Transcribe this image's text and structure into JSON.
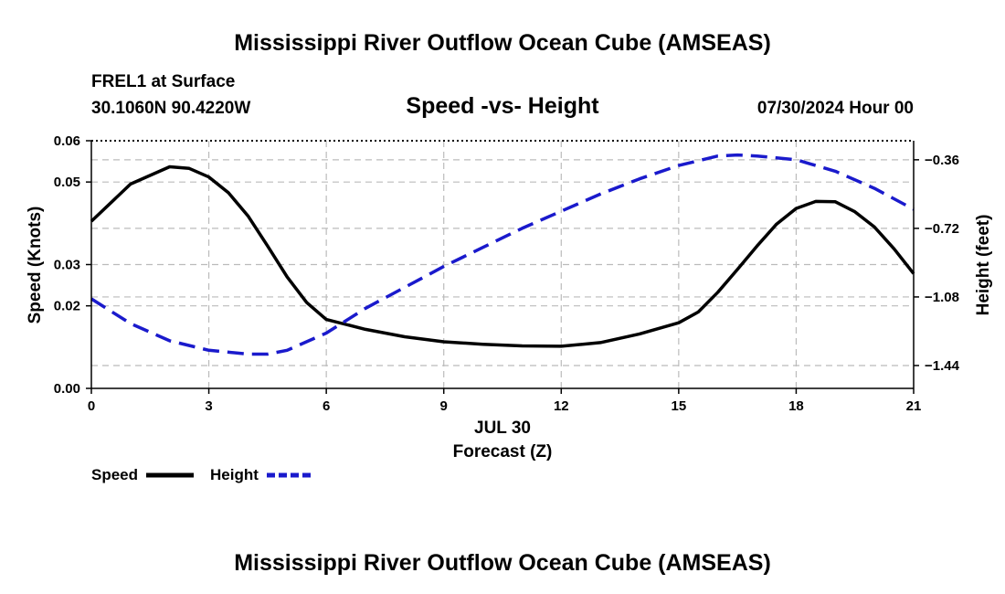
{
  "page": {
    "title": "Mississippi River Outflow Ocean Cube (AMSEAS)",
    "footer_title": "Mississippi River Outflow Ocean Cube (AMSEAS)",
    "station": "FREL1 at Surface",
    "location": "30.1060N  90.4220W",
    "date": "07/30/2024 Hour 00"
  },
  "chart_data": {
    "type": "line",
    "title": "Speed -vs- Height",
    "xlabel": "Forecast (Z)",
    "xlabel_date": "JUL 30",
    "ylabel": "Speed (Knots)",
    "y2label": "Height (feet)",
    "xlim": [
      0,
      21
    ],
    "ylim": [
      0,
      0.06
    ],
    "y2lim": [
      -1.56,
      -0.26
    ],
    "x_ticks": [
      0,
      3,
      6,
      9,
      12,
      15,
      18,
      21
    ],
    "x_tick_labels": [
      "0",
      "3",
      "6",
      "9",
      "12",
      "15",
      "18",
      "21"
    ],
    "y_ticks": [
      0,
      0.02,
      0.03,
      0.05,
      0.06
    ],
    "y_tick_labels": [
      "0.00",
      "0.02",
      "0.03",
      "0.05",
      "0.06"
    ],
    "y2_ticks": [
      -1.44,
      -1.08,
      -0.72,
      -0.36
    ],
    "y2_tick_labels": [
      "−1.44",
      "−1.08",
      "−0.72",
      "−0.36"
    ],
    "grid": true,
    "series": [
      {
        "name": "Speed",
        "axis": "left",
        "color": "#000000",
        "style": "solid",
        "x": [
          0,
          1,
          2,
          2.5,
          3,
          3.5,
          4,
          4.5,
          5,
          5.5,
          6,
          7,
          8,
          9,
          10,
          11,
          12,
          13,
          14,
          15,
          15.5,
          16,
          16.5,
          17,
          17.5,
          18,
          18.5,
          19,
          19.5,
          20,
          20.5,
          21
        ],
        "values": [
          0.0405,
          0.0495,
          0.0537,
          0.0533,
          0.0512,
          0.0474,
          0.0418,
          0.0345,
          0.027,
          0.0208,
          0.0167,
          0.0143,
          0.0125,
          0.0113,
          0.0107,
          0.0103,
          0.0102,
          0.0111,
          0.0132,
          0.0159,
          0.0185,
          0.0233,
          0.0288,
          0.0345,
          0.0398,
          0.0436,
          0.0453,
          0.0452,
          0.0428,
          0.0391,
          0.0338,
          0.0278
        ]
      },
      {
        "name": "Height",
        "axis": "right",
        "color": "#1a1acc",
        "style": "dashed",
        "x": [
          0,
          1,
          2,
          3,
          4,
          4.5,
          5,
          6,
          7,
          8,
          9,
          10,
          11,
          12,
          13,
          14,
          15,
          16,
          16.5,
          17,
          18,
          19,
          20,
          21
        ],
        "values": [
          -1.09,
          -1.22,
          -1.31,
          -1.36,
          -1.38,
          -1.38,
          -1.36,
          -1.27,
          -1.14,
          -1.03,
          -0.92,
          -0.82,
          -0.72,
          -0.63,
          -0.54,
          -0.46,
          -0.39,
          -0.34,
          -0.335,
          -0.34,
          -0.36,
          -0.42,
          -0.51,
          -0.62
        ]
      }
    ],
    "legend": [
      {
        "label": "Speed",
        "color": "#000000",
        "style": "solid"
      },
      {
        "label": "Height",
        "color": "#1a1acc",
        "style": "dashed"
      }
    ],
    "legend_position": "bottom-left"
  }
}
